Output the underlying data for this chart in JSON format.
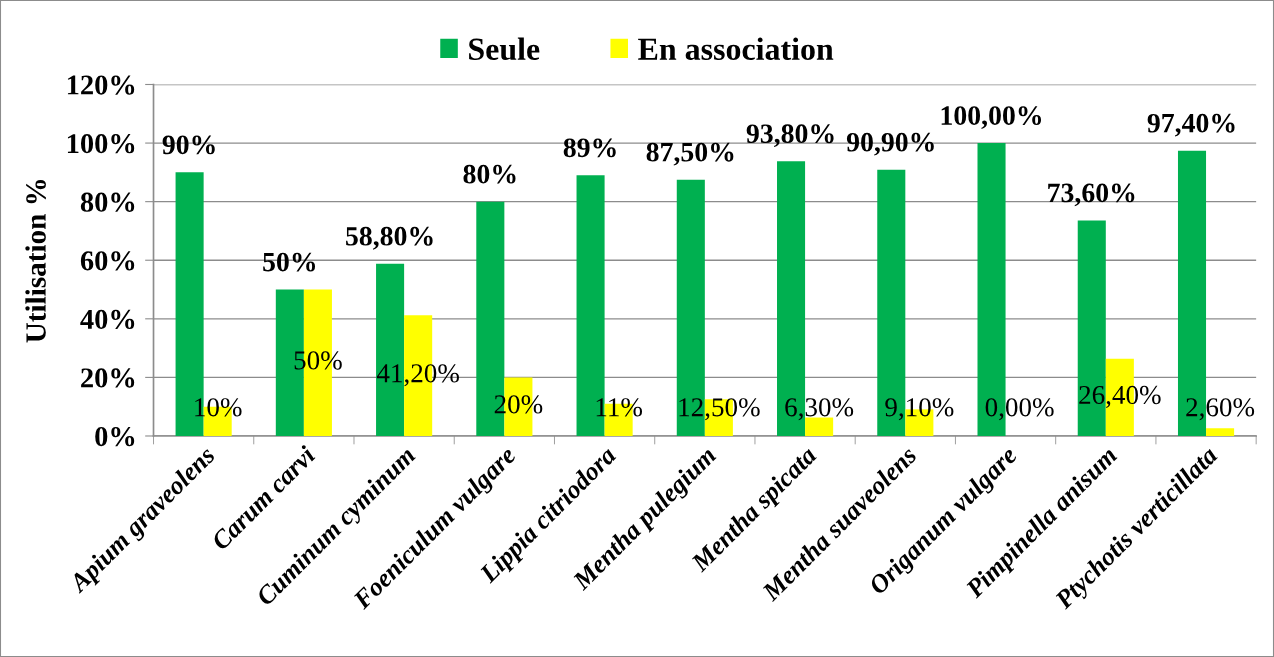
{
  "chart_data": {
    "type": "bar",
    "categories": [
      "Apium graveolens",
      "Carum carvi",
      "Cuminum cyminum",
      "Foeniculum vulgare",
      "Lippia citriodora",
      "Mentha pulegium",
      "Mentha spicata",
      "Mentha suaveolens",
      "Origanum vulgare",
      "Pimpinella anisum",
      "Ptychotis verticillata"
    ],
    "ylabel": "Utilisation %",
    "ylim": [
      0,
      120
    ],
    "yticks": [
      {
        "value": 0,
        "label": "0%"
      },
      {
        "value": 20,
        "label": "20%"
      },
      {
        "value": 40,
        "label": "40%"
      },
      {
        "value": 60,
        "label": "60%"
      },
      {
        "value": 80,
        "label": "80%"
      },
      {
        "value": 100,
        "label": "100%"
      },
      {
        "value": 120,
        "label": "120%"
      }
    ],
    "grid": "y",
    "legend": "top",
    "series": [
      {
        "name": "Seule",
        "color": "#00b050",
        "values": [
          90,
          50,
          58.8,
          80,
          89,
          87.5,
          93.8,
          90.9,
          100,
          73.6,
          97.4
        ],
        "value_labels": [
          "90%",
          "50%",
          "58,80%",
          "80%",
          "89%",
          "87,50%",
          "93,80%",
          "90,90%",
          "100,00%",
          "73,60%",
          "97,40%"
        ]
      },
      {
        "name": "En association",
        "color": "#ffff00",
        "values": [
          10,
          50,
          41.2,
          20,
          11,
          12.5,
          6.3,
          9.1,
          0,
          26.4,
          2.6
        ],
        "value_labels": [
          "10%",
          "50%",
          "41,20%",
          "20%",
          "11%",
          "12,50%",
          "6,30%",
          "9,10%",
          "0,00%",
          "26,40%",
          "2,60%"
        ]
      }
    ]
  }
}
